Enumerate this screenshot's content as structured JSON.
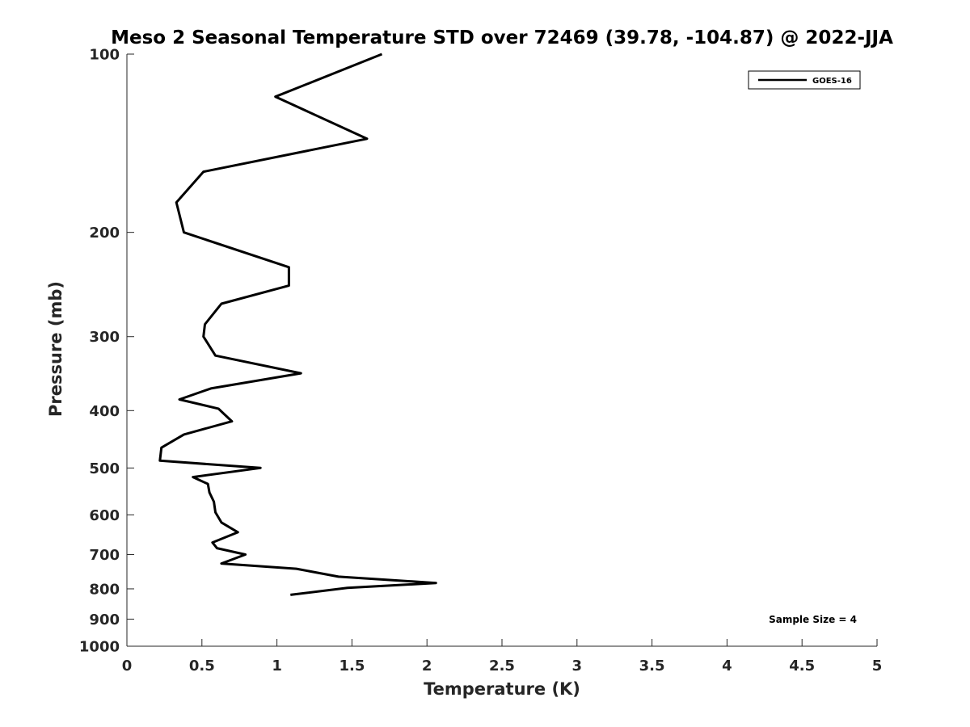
{
  "chart_data": {
    "type": "line",
    "title": "Meso 2 Seasonal Temperature STD over 72469 (39.78, -104.87) @ 2022-JJA",
    "xlabel": "Temperature (K)",
    "ylabel": "Pressure (mb)",
    "xlim": [
      0,
      5
    ],
    "ylim": [
      1000,
      100
    ],
    "y_scale": "log",
    "y_direction": "reversed",
    "grid": false,
    "legend_position": "top-right",
    "x_ticks": [
      0,
      0.5,
      1,
      1.5,
      2,
      2.5,
      3,
      3.5,
      4,
      4.5,
      5
    ],
    "x_tick_labels": [
      "0",
      "0.5",
      "1",
      "1.5",
      "2",
      "2.5",
      "3",
      "3.5",
      "4",
      "4.5",
      "5"
    ],
    "y_ticks": [
      100,
      200,
      300,
      400,
      500,
      600,
      700,
      800,
      900,
      1000
    ],
    "y_tick_labels": [
      "100",
      "200",
      "300",
      "400",
      "500",
      "600",
      "700",
      "800",
      "900",
      "1000"
    ],
    "annotation": "Sample Size = 4",
    "line_color": "#000000",
    "series": [
      {
        "name": "GOES-16",
        "x": [
          1.7,
          0.99,
          1.6,
          0.51,
          0.33,
          0.38,
          1.08,
          1.08,
          0.63,
          0.52,
          0.51,
          0.59,
          1.16,
          0.56,
          0.35,
          0.61,
          0.7,
          0.38,
          0.23,
          0.22,
          0.89,
          0.44,
          0.54,
          0.55,
          0.58,
          0.59,
          0.63,
          0.74,
          0.57,
          0.6,
          0.79,
          0.63,
          1.13,
          1.41,
          2.06,
          1.47,
          1.09
        ],
        "y": [
          100,
          118,
          139,
          158,
          178,
          200,
          229,
          246,
          264,
          286,
          300,
          323,
          346,
          367,
          383,
          397,
          417,
          439,
          462,
          486,
          500,
          518,
          532,
          550,
          570,
          594,
          618,
          642,
          668,
          683,
          700,
          725,
          740,
          763,
          782,
          797,
          819
        ]
      }
    ]
  }
}
